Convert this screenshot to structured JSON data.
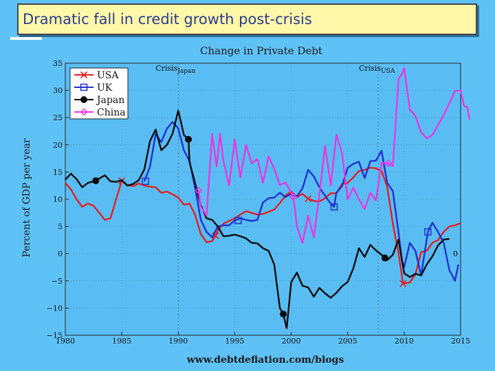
{
  "slide": {
    "title": "Dramatic fall in credit growth post-crisis"
  },
  "chart_data": {
    "type": "line",
    "title": "Change in Private Debt",
    "xlabel": "",
    "ylabel": "Percent of GDP per year",
    "source": "www.debtdeflation.com/blogs",
    "xlim": [
      1980,
      2015
    ],
    "ylim": [
      -15,
      35
    ],
    "xticks": [
      1980,
      1985,
      1990,
      1995,
      2000,
      2005,
      2010,
      2015
    ],
    "yticks": [
      -15,
      -10,
      -5,
      0,
      5,
      10,
      15,
      20,
      25,
      30,
      35
    ],
    "zero_label": "0",
    "annotations": [
      {
        "text": "Crisis",
        "sub": "Japan",
        "x": 1990
      },
      {
        "text": "Crisis",
        "sub": "USA",
        "x": 2007.7
      }
    ],
    "legend_position": "top-left",
    "series": [
      {
        "name": "USA",
        "color": "#e02020",
        "marker": "x",
        "marker_points": [
          [
            1985,
            13.4
          ],
          [
            1993.3,
            3.3
          ],
          [
            2001.5,
            10.1
          ],
          [
            2009.9,
            -5.5
          ]
        ],
        "points": [
          [
            1980,
            13
          ],
          [
            1980.5,
            11.8
          ],
          [
            1981,
            10
          ],
          [
            1981.5,
            8.6
          ],
          [
            1982,
            9.2
          ],
          [
            1982.5,
            8.8
          ],
          [
            1983,
            7.5
          ],
          [
            1983.5,
            6.2
          ],
          [
            1984,
            6.5
          ],
          [
            1984.5,
            10
          ],
          [
            1985,
            13.4
          ],
          [
            1985.5,
            12.6
          ],
          [
            1986,
            12.4
          ],
          [
            1986.5,
            12.9
          ],
          [
            1987,
            12.5
          ],
          [
            1987.5,
            12.3
          ],
          [
            1988,
            12.2
          ],
          [
            1988.5,
            11.2
          ],
          [
            1989,
            11.4
          ],
          [
            1989.5,
            10.9
          ],
          [
            1990,
            10.3
          ],
          [
            1990.5,
            9
          ],
          [
            1991,
            9.2
          ],
          [
            1991.5,
            7.1
          ],
          [
            1992,
            3.6
          ],
          [
            1992.5,
            2.1
          ],
          [
            1993,
            2.3
          ],
          [
            1993.3,
            3.3
          ],
          [
            1993.5,
            4.3
          ],
          [
            1994,
            5.5
          ],
          [
            1994.5,
            6
          ],
          [
            1995,
            6.5
          ],
          [
            1995.5,
            7.2
          ],
          [
            1996,
            7.8
          ],
          [
            1996.5,
            7.5
          ],
          [
            1997,
            7.2
          ],
          [
            1997.5,
            7.3
          ],
          [
            1998,
            7.7
          ],
          [
            1998.5,
            8.1
          ],
          [
            1999,
            9.3
          ],
          [
            1999.5,
            10.7
          ],
          [
            2000,
            11.4
          ],
          [
            2000.5,
            10.4
          ],
          [
            2001,
            11
          ],
          [
            2001.5,
            10.1
          ],
          [
            2002,
            9.7
          ],
          [
            2002.5,
            9.6
          ],
          [
            2003,
            10.2
          ],
          [
            2003.5,
            11.1
          ],
          [
            2004,
            11.1
          ],
          [
            2004.5,
            12.8
          ],
          [
            2005,
            13
          ],
          [
            2005.5,
            14
          ],
          [
            2006,
            15.2
          ],
          [
            2006.5,
            15.4
          ],
          [
            2007,
            15.8
          ],
          [
            2007.5,
            15.7
          ],
          [
            2008,
            15.2
          ],
          [
            2008.5,
            12.3
          ],
          [
            2009,
            5.5
          ],
          [
            2009.5,
            0.2
          ],
          [
            2009.9,
            -5.5
          ],
          [
            2010.5,
            -5.3
          ],
          [
            2011,
            -3.8
          ],
          [
            2011.5,
            0.3
          ],
          [
            2012,
            0.5
          ],
          [
            2012.5,
            2
          ],
          [
            2013,
            2.5
          ],
          [
            2013.5,
            4
          ],
          [
            2014,
            5
          ],
          [
            2014.5,
            5.2
          ],
          [
            2015,
            5.6
          ]
        ]
      },
      {
        "name": "UK",
        "color": "#2030d0",
        "marker": "square",
        "marker_points": [
          [
            1987.1,
            13.3
          ],
          [
            1995.3,
            6.1
          ],
          [
            2003.8,
            8.6
          ],
          [
            2012.1,
            4
          ]
        ],
        "points": [
          [
            1987,
            13.3
          ],
          [
            1987.5,
            16
          ],
          [
            1988,
            22
          ],
          [
            1988.5,
            20.5
          ],
          [
            1989,
            23
          ],
          [
            1989.5,
            24.2
          ],
          [
            1990,
            23
          ],
          [
            1990.5,
            19
          ],
          [
            1991,
            17
          ],
          [
            1991.5,
            12
          ],
          [
            1992,
            6.2
          ],
          [
            1992.5,
            4
          ],
          [
            1993,
            3
          ],
          [
            1993.5,
            5
          ],
          [
            1994,
            5.2
          ],
          [
            1994.5,
            5.2
          ],
          [
            1995,
            6.1
          ],
          [
            1995.5,
            6.5
          ],
          [
            1996,
            6.2
          ],
          [
            1996.5,
            6
          ],
          [
            1997,
            6.2
          ],
          [
            1997.5,
            9.4
          ],
          [
            1998,
            10.2
          ],
          [
            1998.5,
            10.3
          ],
          [
            1999,
            11.2
          ],
          [
            1999.5,
            10.4
          ],
          [
            2000,
            11
          ],
          [
            2000.5,
            10.5
          ],
          [
            2001,
            12
          ],
          [
            2001.5,
            15.4
          ],
          [
            2002,
            14.2
          ],
          [
            2002.5,
            12.2
          ],
          [
            2003,
            10.6
          ],
          [
            2003.5,
            9.2
          ],
          [
            2003.8,
            8.6
          ],
          [
            2004,
            11.2
          ],
          [
            2004.5,
            12.4
          ],
          [
            2005,
            15.8
          ],
          [
            2005.5,
            16.5
          ],
          [
            2006,
            16.9
          ],
          [
            2006.5,
            13.9
          ],
          [
            2007,
            17
          ],
          [
            2007.5,
            17.1
          ],
          [
            2008,
            18.9
          ],
          [
            2008.5,
            13
          ],
          [
            2009,
            11.5
          ],
          [
            2009.5,
            4
          ],
          [
            2009.8,
            -1.2
          ],
          [
            2010,
            -2.5
          ],
          [
            2010.5,
            2
          ],
          [
            2011,
            0.5
          ],
          [
            2011.5,
            -4
          ],
          [
            2012.1,
            4
          ],
          [
            2012.5,
            5.7
          ],
          [
            2013,
            4
          ],
          [
            2013.5,
            2
          ],
          [
            2014,
            -3
          ],
          [
            2014.5,
            -5
          ],
          [
            2014.8,
            -2
          ]
        ]
      },
      {
        "name": "Japan",
        "color": "#0a0a0a",
        "marker": "circle",
        "marker_points": [
          [
            1982.7,
            13.4
          ],
          [
            1990.9,
            21
          ],
          [
            1999.3,
            -11.1
          ],
          [
            2008.3,
            -0.8
          ]
        ],
        "points": [
          [
            1980,
            13.6
          ],
          [
            1980.5,
            14.7
          ],
          [
            1981,
            13.7
          ],
          [
            1981.5,
            12.2
          ],
          [
            1982,
            13
          ],
          [
            1982.7,
            13.4
          ],
          [
            1983,
            13.8
          ],
          [
            1983.5,
            14.4
          ],
          [
            1984,
            13.3
          ],
          [
            1984.5,
            13.2
          ],
          [
            1985,
            13.5
          ],
          [
            1985.5,
            12.5
          ],
          [
            1986,
            12.8
          ],
          [
            1986.5,
            13.5
          ],
          [
            1987,
            15.5
          ],
          [
            1987.5,
            20.7
          ],
          [
            1988,
            22.8
          ],
          [
            1988.5,
            19
          ],
          [
            1989,
            20
          ],
          [
            1989.5,
            22.1
          ],
          [
            1990,
            26.3
          ],
          [
            1990.5,
            21.8
          ],
          [
            1990.9,
            21
          ],
          [
            1991,
            16.8
          ],
          [
            1991.5,
            12.9
          ],
          [
            1992,
            8.9
          ],
          [
            1992.5,
            6.5
          ],
          [
            1993,
            6.2
          ],
          [
            1993.5,
            5
          ],
          [
            1994,
            3.2
          ],
          [
            1994.5,
            3.3
          ],
          [
            1995,
            3.5
          ],
          [
            1995.5,
            3.2
          ],
          [
            1996,
            2.8
          ],
          [
            1996.5,
            2
          ],
          [
            1997,
            1.9
          ],
          [
            1997.5,
            1
          ],
          [
            1998,
            0.5
          ],
          [
            1998.5,
            -2
          ],
          [
            1999,
            -10
          ],
          [
            1999.3,
            -11.1
          ],
          [
            1999.6,
            -13.7
          ],
          [
            2000,
            -5.2
          ],
          [
            2000.5,
            -3.5
          ],
          [
            2001,
            -5.9
          ],
          [
            2001.5,
            -6.2
          ],
          [
            2002,
            -7.9
          ],
          [
            2002.5,
            -6.3
          ],
          [
            2003,
            -7.3
          ],
          [
            2003.5,
            -8.1
          ],
          [
            2004,
            -7.2
          ],
          [
            2004.5,
            -6
          ],
          [
            2005,
            -5.2
          ],
          [
            2005.5,
            -2.7
          ],
          [
            2006,
            1
          ],
          [
            2006.5,
            -0.6
          ],
          [
            2007,
            1.6
          ],
          [
            2007.5,
            0.6
          ],
          [
            2008,
            -0.2
          ],
          [
            2008.3,
            -0.8
          ],
          [
            2008.5,
            -1.2
          ],
          [
            2009,
            -0.2
          ],
          [
            2009.5,
            2.6
          ],
          [
            2010,
            -3.6
          ],
          [
            2010.5,
            -4.3
          ],
          [
            2011,
            -3.7
          ],
          [
            2011.5,
            -4
          ],
          [
            2012,
            -2
          ],
          [
            2012.5,
            -0.5
          ],
          [
            2013,
            1.5
          ],
          [
            2013.5,
            2.6
          ],
          [
            2014,
            2.7
          ]
        ]
      },
      {
        "name": "China",
        "color": "#e838e0",
        "marker": "diamond",
        "marker_points": [
          [
            1991.8,
            11.6
          ],
          [
            2000.2,
            10.4
          ],
          [
            2008.6,
            16.6
          ]
        ],
        "points": [
          [
            1991.8,
            11.6
          ],
          [
            1992,
            8.6
          ],
          [
            1992.5,
            7
          ],
          [
            1993,
            22
          ],
          [
            1993.4,
            16
          ],
          [
            1993.7,
            22
          ],
          [
            1994,
            17
          ],
          [
            1994.5,
            12.5
          ],
          [
            1995,
            21
          ],
          [
            1995.5,
            14
          ],
          [
            1996,
            20
          ],
          [
            1996.5,
            16.6
          ],
          [
            1997,
            17.4
          ],
          [
            1997.5,
            13
          ],
          [
            1998,
            17.9
          ],
          [
            1998.5,
            15.6
          ],
          [
            1999,
            12.6
          ],
          [
            1999.5,
            13.1
          ],
          [
            2000,
            11.2
          ],
          [
            2000.2,
            10.4
          ],
          [
            2000.5,
            5
          ],
          [
            2001,
            2
          ],
          [
            2001.5,
            7
          ],
          [
            2002,
            3
          ],
          [
            2002.5,
            10.9
          ],
          [
            2003,
            19.8
          ],
          [
            2003.5,
            12.5
          ],
          [
            2004,
            21.9
          ],
          [
            2004.5,
            18.5
          ],
          [
            2005,
            10
          ],
          [
            2005.5,
            12.1
          ],
          [
            2006,
            10
          ],
          [
            2006.5,
            8.2
          ],
          [
            2007,
            11.2
          ],
          [
            2007.5,
            9.8
          ],
          [
            2008,
            16.7
          ],
          [
            2008.6,
            16.6
          ],
          [
            2009,
            16.1
          ],
          [
            2009.5,
            32
          ],
          [
            2009.8,
            33
          ],
          [
            2010,
            34.1
          ],
          [
            2010.5,
            26.5
          ],
          [
            2011,
            25.3
          ],
          [
            2011.5,
            22.3
          ],
          [
            2012,
            21.2
          ],
          [
            2012.5,
            21.8
          ],
          [
            2013,
            23.6
          ],
          [
            2013.5,
            25.5
          ],
          [
            2014,
            27.6
          ],
          [
            2014.5,
            29.9
          ],
          [
            2015,
            30
          ],
          [
            2015.3,
            27.2
          ],
          [
            2015.6,
            26.9
          ],
          [
            2015.8,
            24.6
          ]
        ]
      }
    ]
  }
}
